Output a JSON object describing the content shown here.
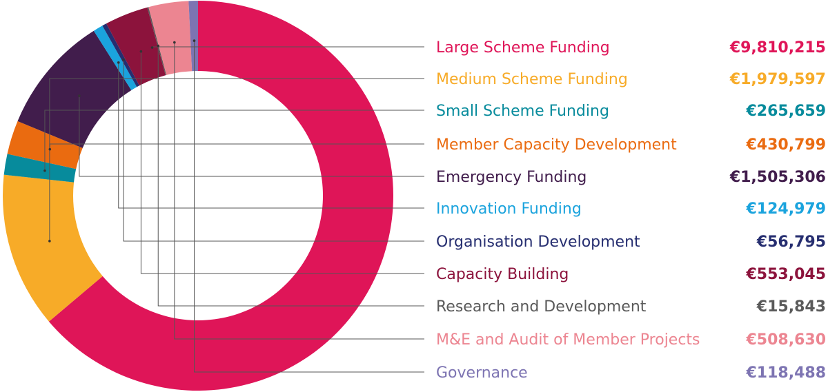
{
  "chart_data": {
    "type": "pie",
    "title": "",
    "categories": [
      "Large Scheme Funding",
      "Medium Scheme Funding",
      "Small Scheme Funding",
      "Member Capacity Development",
      "Emergency Funding",
      "Innovation Funding",
      "Organisation Development",
      "Capacity Building",
      "Research and Development",
      "M&E and Audit of Member Projects",
      "Governance"
    ],
    "values": [
      9810215,
      1979597,
      265659,
      430799,
      1505306,
      124979,
      56795,
      553045,
      15843,
      508630,
      118488
    ],
    "value_labels": [
      "€9,810,215",
      "€1,979,597",
      "€265,659",
      "€430,799",
      "€1,505,306",
      "€124,979",
      "€56,795",
      "€553,045",
      "€15,843",
      "€508,630",
      "€118,488"
    ],
    "colors": [
      "#df1558",
      "#f7ab28",
      "#078b9c",
      "#ea6b10",
      "#411d4c",
      "#1aa3dd",
      "#262e70",
      "#8c133c",
      "#5a5a5a",
      "#ec8591",
      "#7d74b2"
    ],
    "label_colors": [
      "#df1558",
      "#f7ab28",
      "#078b9c",
      "#ea6b10",
      "#411d4c",
      "#1aa3dd",
      "#262e70",
      "#8c133c",
      "#5a5a5a",
      "#ec8591",
      "#7d74b2"
    ],
    "donut": true,
    "legend": "right"
  }
}
